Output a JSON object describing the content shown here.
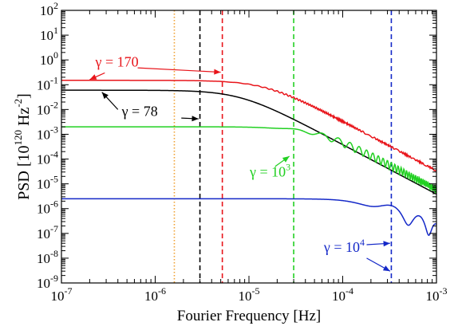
{
  "chart_data": {
    "type": "line",
    "title": "",
    "xlabel": "Fourier Frequency [Hz]",
    "ylabel": {
      "base": "PSD [10",
      "exp1": "120",
      "mid": " Hz",
      "exp2": "-2",
      "end": "]"
    },
    "xscale": "log",
    "yscale": "log",
    "xlim": [
      1e-07,
      0.001
    ],
    "ylim": [
      1e-09,
      100
    ],
    "x_ticks": [
      {
        "value": 1e-07,
        "base": "10",
        "exp": "-7"
      },
      {
        "value": 1e-06,
        "base": "10",
        "exp": "-6"
      },
      {
        "value": 1e-05,
        "base": "10",
        "exp": "-5"
      },
      {
        "value": 0.0001,
        "base": "10",
        "exp": "-4"
      },
      {
        "value": 0.001,
        "base": "10",
        "exp": "-3"
      }
    ],
    "y_ticks": [
      {
        "value": 100,
        "base": "10",
        "exp": "2"
      },
      {
        "value": 10,
        "base": "10",
        "exp": "1"
      },
      {
        "value": 1,
        "base": "10",
        "exp": "0"
      },
      {
        "value": 0.1,
        "base": "10",
        "exp": "-1"
      },
      {
        "value": 0.01,
        "base": "10",
        "exp": "-2"
      },
      {
        "value": 0.001,
        "base": "10",
        "exp": "-3"
      },
      {
        "value": 0.0001,
        "base": "10",
        "exp": "-4"
      },
      {
        "value": 1e-05,
        "base": "10",
        "exp": "-5"
      },
      {
        "value": 1e-06,
        "base": "10",
        "exp": "-6"
      },
      {
        "value": 1e-07,
        "base": "10",
        "exp": "-7"
      },
      {
        "value": 1e-08,
        "base": "10",
        "exp": "-8"
      },
      {
        "value": 1e-09,
        "base": "10",
        "exp": "-9"
      }
    ],
    "grid": false,
    "series": [
      {
        "gamma": "170",
        "color": "#e8141a",
        "plateau": 0.15,
        "corner": 1.5e-05,
        "osc_amp": 0.08,
        "osc_period": 2.5e-06
      },
      {
        "gamma": "78",
        "color": "#000000",
        "plateau": 0.06,
        "corner": 8e-06,
        "osc_amp": 0.0,
        "osc_period": 1e-05
      },
      {
        "gamma": "10^3",
        "color": "#22d022",
        "plateau": 0.002,
        "corner": 5.5e-05,
        "osc_amp": 0.35,
        "osc_period": 3e-05
      },
      {
        "gamma": "10^4",
        "color": "#1428c8",
        "plateau": 2.5e-06,
        "corner": 0.00025,
        "osc_amp": 0.6,
        "osc_period": 0.00033
      }
    ],
    "vlines": [
      {
        "x": 1.6e-06,
        "color": "#f0a030",
        "style": "dotted"
      },
      {
        "x": 3e-06,
        "color": "#000000",
        "style": "dashed"
      },
      {
        "x": 5.2e-06,
        "color": "#e8141a",
        "style": "dashed"
      },
      {
        "x": 3e-05,
        "color": "#22d022",
        "style": "dashed"
      },
      {
        "x": 0.00033,
        "color": "#1428c8",
        "style": "dashed"
      }
    ],
    "annotations": [
      {
        "text_pre": "γ = ",
        "base": "170",
        "exp": "",
        "color": "#e8141a",
        "text_at": [
          2.3e-07,
          0.55
        ],
        "arrows": [
          [
            2.9e-07,
            0.3,
            2e-07,
            0.16
          ],
          [
            6.5e-07,
            0.48,
            5e-06,
            0.32
          ]
        ]
      },
      {
        "text_pre": "γ = ",
        "base": "78",
        "exp": "",
        "color": "#000000",
        "text_at": [
          4.4e-07,
          0.0055
        ],
        "arrows": [
          [
            4e-07,
            0.01,
            2.7e-07,
            0.05
          ],
          [
            1.9e-06,
            0.0045,
            2.9e-06,
            0.0042
          ]
        ]
      },
      {
        "text_pre": "γ = ",
        "base": "10",
        "exp": "3",
        "color": "#22d022",
        "text_at": [
          1.02e-05,
          2e-05
        ],
        "arrows": [
          [
            1.9e-05,
            5e-05,
            2.7e-05,
            0.00013
          ]
        ]
      },
      {
        "text_pre": "γ = ",
        "base": "10",
        "exp": "4",
        "color": "#1428c8",
        "text_at": [
          6.3e-05,
          1.8e-08
        ],
        "arrows": [
          [
            0.00018,
            3.5e-08,
            0.00032,
            4e-08
          ],
          [
            0.00018,
            1e-08,
            0.00032,
            3e-09
          ]
        ]
      }
    ]
  }
}
